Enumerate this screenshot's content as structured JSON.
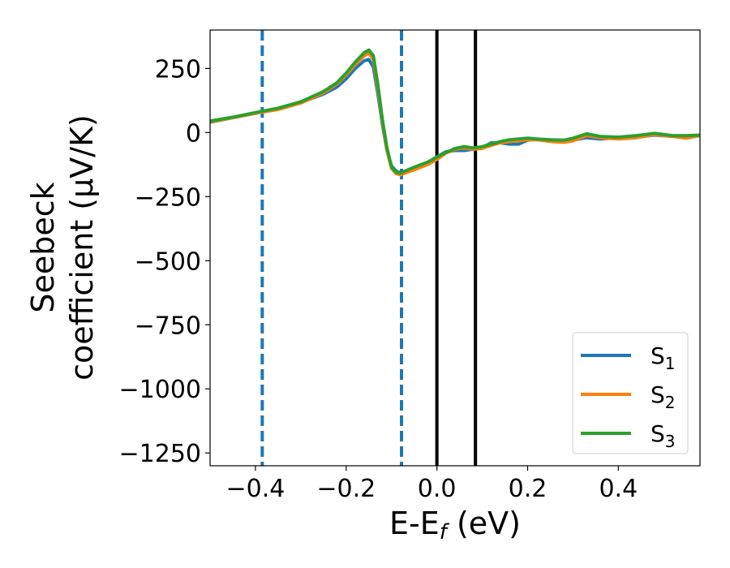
{
  "chart_data": {
    "type": "line",
    "xlabel": {
      "main": "E-E",
      "sub": "f",
      "unit": " (eV)"
    },
    "ylabel": {
      "line1": "Seebeck",
      "line2": "coefficient  (μV/K)"
    },
    "xlim": [
      -0.5,
      0.58
    ],
    "ylim": [
      -1300,
      400
    ],
    "x_ticks": [
      {
        "value": -0.4,
        "label": "−0.4"
      },
      {
        "value": -0.2,
        "label": "−0.2"
      },
      {
        "value": 0.0,
        "label": "0.0"
      },
      {
        "value": 0.2,
        "label": "0.2"
      },
      {
        "value": 0.4,
        "label": "0.4"
      }
    ],
    "y_ticks": [
      {
        "value": 250,
        "label": "250"
      },
      {
        "value": 0,
        "label": "0"
      },
      {
        "value": -250,
        "label": "−250"
      },
      {
        "value": -500,
        "label": "−500"
      },
      {
        "value": -750,
        "label": "−750"
      },
      {
        "value": -1000,
        "label": "−1000"
      },
      {
        "value": -1250,
        "label": "−1250"
      }
    ],
    "grid": false,
    "legend_position": "bottom-right",
    "series": [
      {
        "name": "S",
        "sub": "1",
        "color": "#1f77b4",
        "points": [
          [
            -0.5,
            40
          ],
          [
            -0.45,
            58
          ],
          [
            -0.4,
            75
          ],
          [
            -0.35,
            95
          ],
          [
            -0.3,
            118
          ],
          [
            -0.25,
            150
          ],
          [
            -0.22,
            178
          ],
          [
            -0.2,
            210
          ],
          [
            -0.18,
            250
          ],
          [
            -0.16,
            280
          ],
          [
            -0.15,
            285
          ],
          [
            -0.14,
            255
          ],
          [
            -0.13,
            150
          ],
          [
            -0.12,
            30
          ],
          [
            -0.11,
            -70
          ],
          [
            -0.1,
            -130
          ],
          [
            -0.09,
            -150
          ],
          [
            -0.08,
            -158
          ],
          [
            -0.07,
            -155
          ],
          [
            -0.05,
            -140
          ],
          [
            -0.02,
            -120
          ],
          [
            0.0,
            -95
          ],
          [
            0.02,
            -75
          ],
          [
            0.04,
            -70
          ],
          [
            0.06,
            -70
          ],
          [
            0.08,
            -65
          ],
          [
            0.1,
            -60
          ],
          [
            0.12,
            -40
          ],
          [
            0.14,
            -40
          ],
          [
            0.16,
            -45
          ],
          [
            0.18,
            -45
          ],
          [
            0.2,
            -30
          ],
          [
            0.22,
            -25
          ],
          [
            0.25,
            -30
          ],
          [
            0.28,
            -35
          ],
          [
            0.3,
            -30
          ],
          [
            0.33,
            -20
          ],
          [
            0.36,
            -25
          ],
          [
            0.4,
            -20
          ],
          [
            0.44,
            -18
          ],
          [
            0.48,
            -10
          ],
          [
            0.52,
            -15
          ],
          [
            0.55,
            -15
          ],
          [
            0.58,
            -10
          ]
        ]
      },
      {
        "name": "S",
        "sub": "2",
        "color": "#ff7f0e",
        "points": [
          [
            -0.5,
            42
          ],
          [
            -0.45,
            58
          ],
          [
            -0.4,
            75
          ],
          [
            -0.35,
            90
          ],
          [
            -0.3,
            115
          ],
          [
            -0.25,
            155
          ],
          [
            -0.22,
            190
          ],
          [
            -0.2,
            225
          ],
          [
            -0.18,
            265
          ],
          [
            -0.16,
            300
          ],
          [
            -0.15,
            310
          ],
          [
            -0.14,
            285
          ],
          [
            -0.13,
            170
          ],
          [
            -0.12,
            40
          ],
          [
            -0.11,
            -70
          ],
          [
            -0.1,
            -140
          ],
          [
            -0.09,
            -160
          ],
          [
            -0.08,
            -165
          ],
          [
            -0.07,
            -158
          ],
          [
            -0.05,
            -145
          ],
          [
            -0.02,
            -125
          ],
          [
            0.0,
            -105
          ],
          [
            0.02,
            -80
          ],
          [
            0.04,
            -65
          ],
          [
            0.06,
            -60
          ],
          [
            0.08,
            -65
          ],
          [
            0.1,
            -62
          ],
          [
            0.12,
            -50
          ],
          [
            0.14,
            -40
          ],
          [
            0.16,
            -35
          ],
          [
            0.18,
            -32
          ],
          [
            0.2,
            -28
          ],
          [
            0.22,
            -28
          ],
          [
            0.25,
            -35
          ],
          [
            0.28,
            -38
          ],
          [
            0.3,
            -32
          ],
          [
            0.33,
            -12
          ],
          [
            0.36,
            -20
          ],
          [
            0.4,
            -25
          ],
          [
            0.44,
            -20
          ],
          [
            0.48,
            -8
          ],
          [
            0.52,
            -15
          ],
          [
            0.55,
            -22
          ],
          [
            0.58,
            -12
          ]
        ]
      },
      {
        "name": "S",
        "sub": "3",
        "color": "#2ca02c",
        "points": [
          [
            -0.5,
            45
          ],
          [
            -0.45,
            60
          ],
          [
            -0.4,
            78
          ],
          [
            -0.35,
            95
          ],
          [
            -0.3,
            120
          ],
          [
            -0.25,
            160
          ],
          [
            -0.22,
            195
          ],
          [
            -0.2,
            232
          ],
          [
            -0.18,
            275
          ],
          [
            -0.16,
            312
          ],
          [
            -0.15,
            322
          ],
          [
            -0.14,
            300
          ],
          [
            -0.13,
            185
          ],
          [
            -0.12,
            50
          ],
          [
            -0.11,
            -60
          ],
          [
            -0.1,
            -135
          ],
          [
            -0.09,
            -155
          ],
          [
            -0.08,
            -158
          ],
          [
            -0.07,
            -150
          ],
          [
            -0.05,
            -135
          ],
          [
            -0.02,
            -115
          ],
          [
            0.0,
            -95
          ],
          [
            0.02,
            -78
          ],
          [
            0.04,
            -62
          ],
          [
            0.06,
            -55
          ],
          [
            0.08,
            -60
          ],
          [
            0.1,
            -55
          ],
          [
            0.12,
            -45
          ],
          [
            0.14,
            -35
          ],
          [
            0.16,
            -28
          ],
          [
            0.18,
            -25
          ],
          [
            0.2,
            -22
          ],
          [
            0.22,
            -25
          ],
          [
            0.25,
            -28
          ],
          [
            0.28,
            -30
          ],
          [
            0.3,
            -22
          ],
          [
            0.33,
            -5
          ],
          [
            0.36,
            -15
          ],
          [
            0.4,
            -18
          ],
          [
            0.44,
            -12
          ],
          [
            0.48,
            -3
          ],
          [
            0.52,
            -12
          ],
          [
            0.55,
            -12
          ],
          [
            0.58,
            -10
          ]
        ]
      }
    ],
    "vlines": [
      {
        "x": -0.385,
        "style": "dashed",
        "color": "#1f77b4"
      },
      {
        "x": -0.078,
        "style": "dashed",
        "color": "#1f77b4"
      },
      {
        "x": 0.0,
        "style": "solid",
        "color": "#000000"
      },
      {
        "x": 0.085,
        "style": "solid",
        "color": "#000000"
      }
    ]
  }
}
